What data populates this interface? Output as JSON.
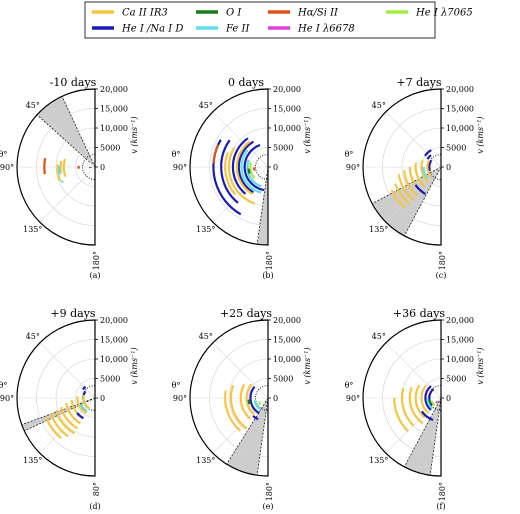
{
  "chart_data": {
    "type": "polar-half",
    "legend": {
      "entries": [
        {
          "label": "Ca II IR3",
          "color": "#f5c542"
        },
        {
          "label": "He I /Na I D",
          "color": "#1a1ab8"
        },
        {
          "label": "O I",
          "color": "#1a7a1a"
        },
        {
          "label": "Fe II",
          "color": "#5ee0e8"
        },
        {
          "label": "Hα/Si II",
          "color": "#e0501c"
        },
        {
          "label": "He I λ6678",
          "color": "#e040e0"
        },
        {
          "label": "He I λ7065",
          "color": "#a6ea46"
        }
      ]
    },
    "radial_axis": {
      "label": "v (kms⁻¹)",
      "ticks": [
        "0",
        "5000",
        "10,000",
        "15,000",
        "20,000"
      ],
      "tick_values": [
        0,
        5000,
        10000,
        15000,
        20000
      ],
      "max": 20000
    },
    "angular_axis": {
      "label": "θ°",
      "ticks": [
        "45°",
        "90°",
        "135°"
      ],
      "tick_values": [
        45,
        90,
        135
      ]
    },
    "panels": [
      {
        "title": "-10 days",
        "caption": "(a)",
        "bottom_label": "180°",
        "shade": {
          "from": 25,
          "to": 48
        },
        "arcs": [
          {
            "s": "Ca II IR3",
            "r": 8000,
            "a1": 75,
            "a2": 108
          },
          {
            "s": "Ca II IR3",
            "r": 8800,
            "a1": 80,
            "a2": 100
          },
          {
            "s": "Ca II IR3",
            "r": 9600,
            "a1": 86,
            "a2": 112
          },
          {
            "s": "Fe II",
            "r": 9200,
            "a1": 88,
            "a2": 102
          },
          {
            "s": "Fe II",
            "r": 9200,
            "a1": 112,
            "a2": 116
          },
          {
            "s": "Hα/Si II",
            "r": 13000,
            "a1": 80,
            "a2": 98
          },
          {
            "s": "Hα/Si II",
            "r": 4200,
            "a1": 86,
            "a2": 96
          },
          {
            "s": "He I /Na I D",
            "r": 1200,
            "a1": 92,
            "a2": 104
          }
        ]
      },
      {
        "title": "0 days",
        "caption": "(b)",
        "bottom_label": "180°",
        "shade": {
          "from": 172,
          "to": 180
        },
        "arcs": [
          {
            "s": "He I /Na I D",
            "r": 6000,
            "a1": 20,
            "a2": 170
          },
          {
            "s": "He I /Na I D",
            "r": 7500,
            "a1": 30,
            "a2": 150
          },
          {
            "s": "He I /Na I D",
            "r": 9000,
            "a1": 35,
            "a2": 140
          },
          {
            "s": "He I /Na I D",
            "r": 12000,
            "a1": 55,
            "a2": 140
          },
          {
            "s": "He I /Na I D",
            "r": 14000,
            "a1": 60,
            "a2": 150
          },
          {
            "s": "Ca II IR3",
            "r": 8000,
            "a1": 35,
            "a2": 150
          },
          {
            "s": "Ca II IR3",
            "r": 10000,
            "a1": 60,
            "a2": 160
          },
          {
            "s": "Ca II IR3",
            "r": 11000,
            "a1": 70,
            "a2": 130
          },
          {
            "s": "Fe II",
            "r": 6800,
            "a1": 50,
            "a2": 165
          },
          {
            "s": "Fe II",
            "r": 5300,
            "a1": 70,
            "a2": 160
          },
          {
            "s": "He I λ7065",
            "r": 4500,
            "a1": 75,
            "a2": 130
          },
          {
            "s": "O I",
            "r": 5000,
            "a1": 95,
            "a2": 110
          },
          {
            "s": "Hα/Si II",
            "r": 14000,
            "a1": 66,
            "a2": 86
          },
          {
            "s": "Hα/Si II",
            "r": 3600,
            "a1": 92,
            "a2": 104
          }
        ]
      },
      {
        "title": "+7 days",
        "caption": "(c)",
        "bottom_label": "180°",
        "shade": {
          "from": 118,
          "to": 152
        },
        "arcs": [
          {
            "s": "He I /Na I D",
            "r": 3000,
            "a1": 55,
            "a2": 110
          },
          {
            "s": "He I /Na I D",
            "r": 4000,
            "a1": 40,
            "a2": 60
          },
          {
            "s": "He I /Na I D",
            "r": 5000,
            "a1": 30,
            "a2": 55
          },
          {
            "s": "Ca II IR3",
            "r": 3500,
            "a1": 60,
            "a2": 140
          },
          {
            "s": "Ca II IR3",
            "r": 5000,
            "a1": 70,
            "a2": 140
          },
          {
            "s": "Ca II IR3",
            "r": 6500,
            "a1": 80,
            "a2": 140
          },
          {
            "s": "Ca II IR3",
            "r": 8000,
            "a1": 90,
            "a2": 140
          },
          {
            "s": "Ca II IR3",
            "r": 9500,
            "a1": 95,
            "a2": 140
          },
          {
            "s": "Ca II IR3",
            "r": 11000,
            "a1": 100,
            "a2": 140
          },
          {
            "s": "Ca II IR3",
            "r": 12500,
            "a1": 110,
            "a2": 140
          },
          {
            "s": "Ca II IR3",
            "r": 14000,
            "a1": 115,
            "a2": 138
          },
          {
            "s": "Fe II",
            "r": 4500,
            "a1": 90,
            "a2": 130
          },
          {
            "s": "He I /Na I D",
            "r": 8000,
            "a1": 125,
            "a2": 150
          }
        ]
      },
      {
        "title": "+9 days",
        "caption": "(d)",
        "bottom_label": "80°",
        "shade": {
          "from": 110,
          "to": 115
        },
        "arcs": [
          {
            "s": "He I /Na I D",
            "r": 3000,
            "a1": 55,
            "a2": 115
          },
          {
            "s": "He I /Na I D",
            "r": 3800,
            "a1": 40,
            "a2": 55
          },
          {
            "s": "Ca II IR3",
            "r": 3000,
            "a1": 75,
            "a2": 150
          },
          {
            "s": "Ca II IR3",
            "r": 4500,
            "a1": 85,
            "a2": 150
          },
          {
            "s": "Ca II IR3",
            "r": 6000,
            "a1": 95,
            "a2": 150
          },
          {
            "s": "Ca II IR3",
            "r": 7500,
            "a1": 100,
            "a2": 150
          },
          {
            "s": "Ca II IR3",
            "r": 9000,
            "a1": 105,
            "a2": 150
          },
          {
            "s": "Ca II IR3",
            "r": 10500,
            "a1": 108,
            "a2": 150
          },
          {
            "s": "Ca II IR3",
            "r": 12000,
            "a1": 110,
            "a2": 145
          },
          {
            "s": "Ca II IR3",
            "r": 13500,
            "a1": 112,
            "a2": 140
          },
          {
            "s": "Fe II",
            "r": 4000,
            "a1": 115,
            "a2": 150
          },
          {
            "s": "He I /Na I D",
            "r": 6000,
            "a1": 130,
            "a2": 150
          }
        ]
      },
      {
        "title": "+25 days",
        "caption": "(e)",
        "bottom_label": "180°",
        "shade": {
          "from": 148,
          "to": 172
        },
        "arcs": [
          {
            "s": "He I /Na I D",
            "r": 4500,
            "a1": 50,
            "a2": 150
          },
          {
            "s": "Ca II IR3",
            "r": 5500,
            "a1": 50,
            "a2": 140
          },
          {
            "s": "Ca II IR3",
            "r": 7000,
            "a1": 60,
            "a2": 140
          },
          {
            "s": "Ca II IR3",
            "r": 9500,
            "a1": 70,
            "a2": 145
          },
          {
            "s": "Ca II IR3",
            "r": 11000,
            "a1": 80,
            "a2": 140
          },
          {
            "s": "Fe II",
            "r": 3500,
            "a1": 100,
            "a2": 150
          },
          {
            "s": "He I /Na I D",
            "r": 6000,
            "a1": 140,
            "a2": 155
          },
          {
            "s": "O I",
            "r": 5000,
            "a1": 95,
            "a2": 108
          },
          {
            "s": "He I λ7065",
            "r": 2500,
            "a1": 110,
            "a2": 130
          }
        ]
      },
      {
        "title": "+36 days",
        "caption": "(f)",
        "bottom_label": "180°",
        "shade": {
          "from": 152,
          "to": 172
        },
        "arcs": [
          {
            "s": "He I /Na I D",
            "r": 4000,
            "a1": 40,
            "a2": 140
          },
          {
            "s": "He I /Na I D",
            "r": 3000,
            "a1": 40,
            "a2": 130
          },
          {
            "s": "Ca II IR3",
            "r": 5000,
            "a1": 50,
            "a2": 140
          },
          {
            "s": "Ca II IR3",
            "r": 6500,
            "a1": 60,
            "a2": 140
          },
          {
            "s": "Ca II IR3",
            "r": 8000,
            "a1": 70,
            "a2": 145
          },
          {
            "s": "Ca II IR3",
            "r": 10000,
            "a1": 75,
            "a2": 135
          },
          {
            "s": "Ca II IR3",
            "r": 12000,
            "a1": 90,
            "a2": 135
          },
          {
            "s": "Fe II",
            "r": 3500,
            "a1": 90,
            "a2": 140
          },
          {
            "s": "He I λ7065",
            "r": 2500,
            "a1": 110,
            "a2": 140
          },
          {
            "s": "O I",
            "r": 3000,
            "a1": 100,
            "a2": 120
          },
          {
            "s": "He I λ6678",
            "r": 1500,
            "a1": 125,
            "a2": 145
          },
          {
            "s": "He I /Na I D",
            "r": 6000,
            "a1": 125,
            "a2": 160
          }
        ]
      }
    ]
  }
}
